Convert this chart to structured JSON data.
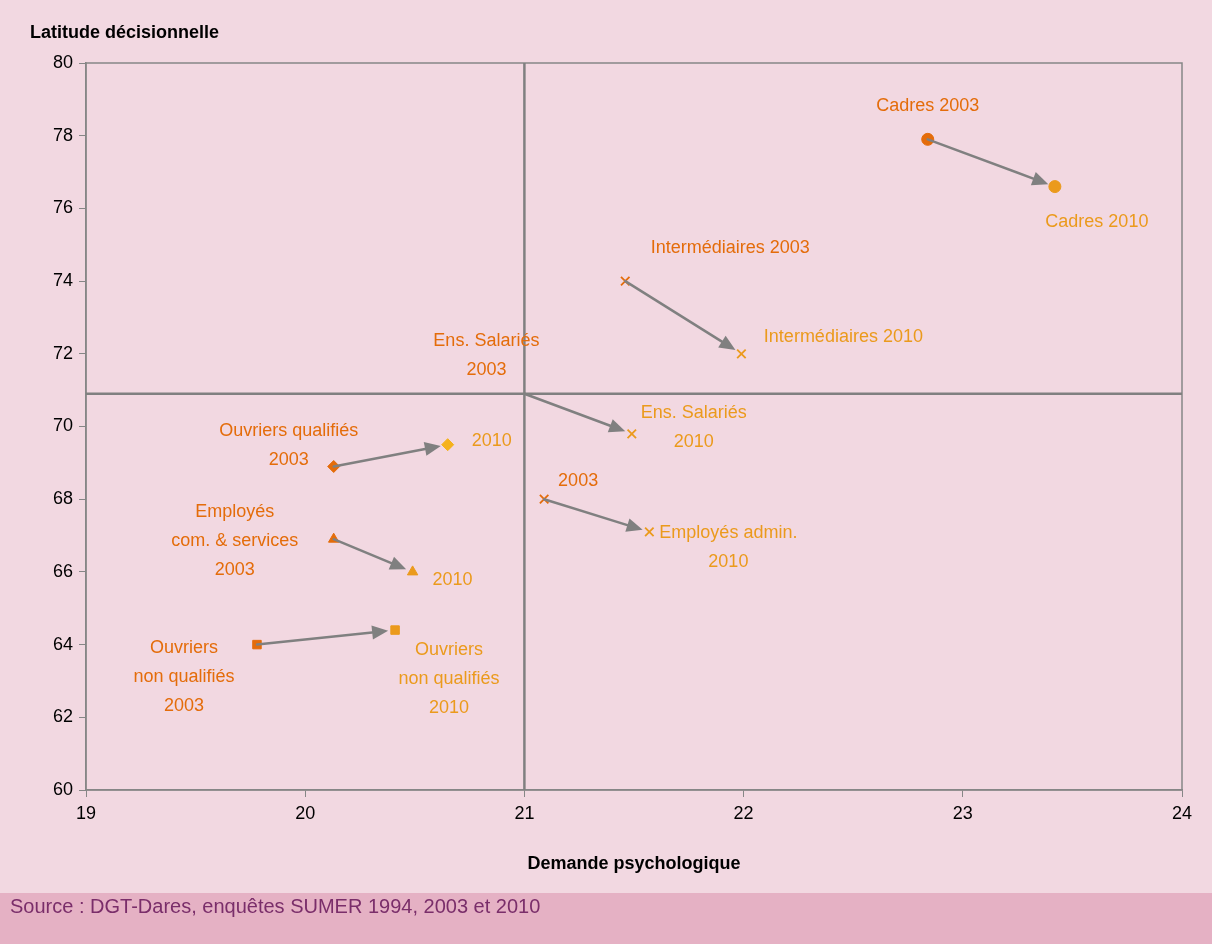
{
  "chart_data": {
    "type": "scatter",
    "ylabel": "Latitude décisionnelle",
    "xlabel": "Demande psychologique",
    "xlim": [
      19,
      24
    ],
    "xticks": [
      19,
      20,
      21,
      22,
      23,
      24
    ],
    "ylim": [
      60,
      80
    ],
    "yticks": [
      60,
      62,
      64,
      66,
      68,
      70,
      72,
      74,
      76,
      78,
      80
    ],
    "grid": false,
    "legend": false,
    "ref_lines": [
      {
        "axis": "x",
        "value": 21,
        "color": "#808080"
      },
      {
        "axis": "y",
        "value": 70.9,
        "color": "#808080"
      }
    ],
    "annotations": [
      {
        "text": "Ens. Salariés 2003",
        "x": 21.0,
        "y": 70.9
      },
      "Source : DGT-Dares, enquêtes SUMER 1994, 2003 et 2010"
    ],
    "series": [
      {
        "name": "Cadres 2003",
        "color": "#e46c0a",
        "marker": "circle",
        "x": [
          22.84
        ],
        "values": [
          77.9
        ]
      },
      {
        "name": "Cadres 2010",
        "color": "#eb9a1c",
        "marker": "circle",
        "x": [
          23.42
        ],
        "values": [
          76.6
        ]
      },
      {
        "name": "Intermédiaires 2003",
        "color": "#e46c0a",
        "marker": "cross",
        "x": [
          21.46
        ],
        "values": [
          74.0
        ]
      },
      {
        "name": "Intermédiaires 2010",
        "color": "#eb9a1c",
        "marker": "cross",
        "x": [
          21.99
        ],
        "values": [
          72.0
        ]
      },
      {
        "name": "Ens. Salariés 2010",
        "color": "#eb9a1c",
        "marker": "cross",
        "x": [
          21.49
        ],
        "values": [
          69.8
        ]
      },
      {
        "name": "Ouvriers qualifiés 2003",
        "color": "#e46c0a",
        "marker": "diamond",
        "x": [
          20.13
        ],
        "values": [
          68.9
        ]
      },
      {
        "name": "2010",
        "color": "#eb9a1c",
        "colors": [
          "#f5b21c"
        ],
        "marker": "diamond",
        "x": [
          20.65
        ],
        "values": [
          69.5
        ]
      },
      {
        "name": "Employés com. & services 2003",
        "color": "#e46c0a",
        "marker": "triangle",
        "x": [
          20.13
        ],
        "values": [
          66.9
        ]
      },
      {
        "name": "2010",
        "color": "#eb9a1c",
        "marker": "triangle",
        "x": [
          20.49
        ],
        "values": [
          66.0
        ]
      },
      {
        "name": "Ouvriers non qualifiés 2003",
        "color": "#e46c0a",
        "marker": "square",
        "x": [
          19.78
        ],
        "values": [
          64.0
        ]
      },
      {
        "name": "Ouvriers non qualifiés 2010",
        "color": "#eb9a1c",
        "marker": "square",
        "x": [
          20.41
        ],
        "values": [
          64.4
        ]
      },
      {
        "name": "2003",
        "color": "#e46c0a",
        "marker": "cross",
        "x": [
          21.09
        ],
        "values": [
          68.0
        ]
      },
      {
        "name": "Employés admin. 2010",
        "color": "#eb9a1c",
        "marker": "cross",
        "x": [
          21.57
        ],
        "values": [
          67.1
        ]
      }
    ]
  }
}
